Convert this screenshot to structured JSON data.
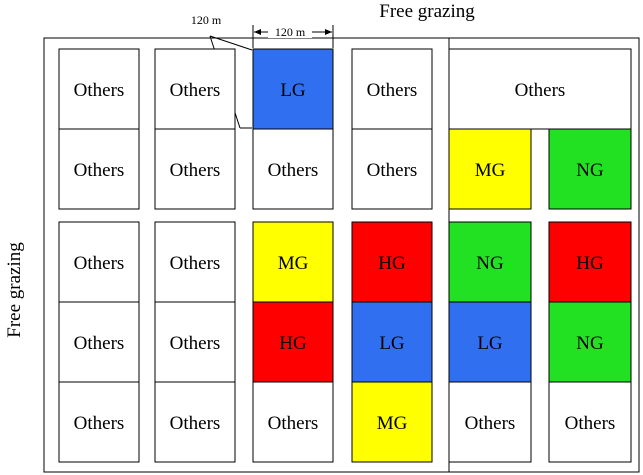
{
  "labels": {
    "top": "Free grazing",
    "left": "Free grazing",
    "dim_width": "120 m",
    "dim_side": "120 m"
  },
  "legend_colors": {
    "LG": "#2F6FF0",
    "MG": "#FFFF00",
    "HG": "#FF0000",
    "NG": "#22E022",
    "Others": "#FFFFFF"
  },
  "plots": [
    {
      "label": "Others",
      "treatment": "Others"
    },
    {
      "label": "Others",
      "treatment": "Others"
    },
    {
      "label": "LG",
      "treatment": "LG"
    },
    {
      "label": "Others",
      "treatment": "Others"
    },
    {
      "label": "Others",
      "treatment": "Others"
    },
    {
      "label": "Others",
      "treatment": "Others"
    },
    {
      "label": "Others",
      "treatment": "Others"
    },
    {
      "label": "Others",
      "treatment": "Others"
    },
    {
      "label": "Others",
      "treatment": "Others"
    },
    {
      "label": "MG",
      "treatment": "MG"
    },
    {
      "label": "NG",
      "treatment": "NG"
    },
    {
      "label": "Others",
      "treatment": "Others"
    },
    {
      "label": "Others",
      "treatment": "Others"
    },
    {
      "label": "MG",
      "treatment": "MG"
    },
    {
      "label": "HG",
      "treatment": "HG"
    },
    {
      "label": "NG",
      "treatment": "NG"
    },
    {
      "label": "HG",
      "treatment": "HG"
    },
    {
      "label": "Others",
      "treatment": "Others"
    },
    {
      "label": "Others",
      "treatment": "Others"
    },
    {
      "label": "HG",
      "treatment": "HG"
    },
    {
      "label": "LG",
      "treatment": "LG"
    },
    {
      "label": "LG",
      "treatment": "LG"
    },
    {
      "label": "NG",
      "treatment": "NG"
    },
    {
      "label": "Others",
      "treatment": "Others"
    },
    {
      "label": "Others",
      "treatment": "Others"
    },
    {
      "label": "Others",
      "treatment": "Others"
    },
    {
      "label": "MG",
      "treatment": "MG"
    },
    {
      "label": "Others",
      "treatment": "Others"
    },
    {
      "label": "Others",
      "treatment": "Others"
    }
  ]
}
